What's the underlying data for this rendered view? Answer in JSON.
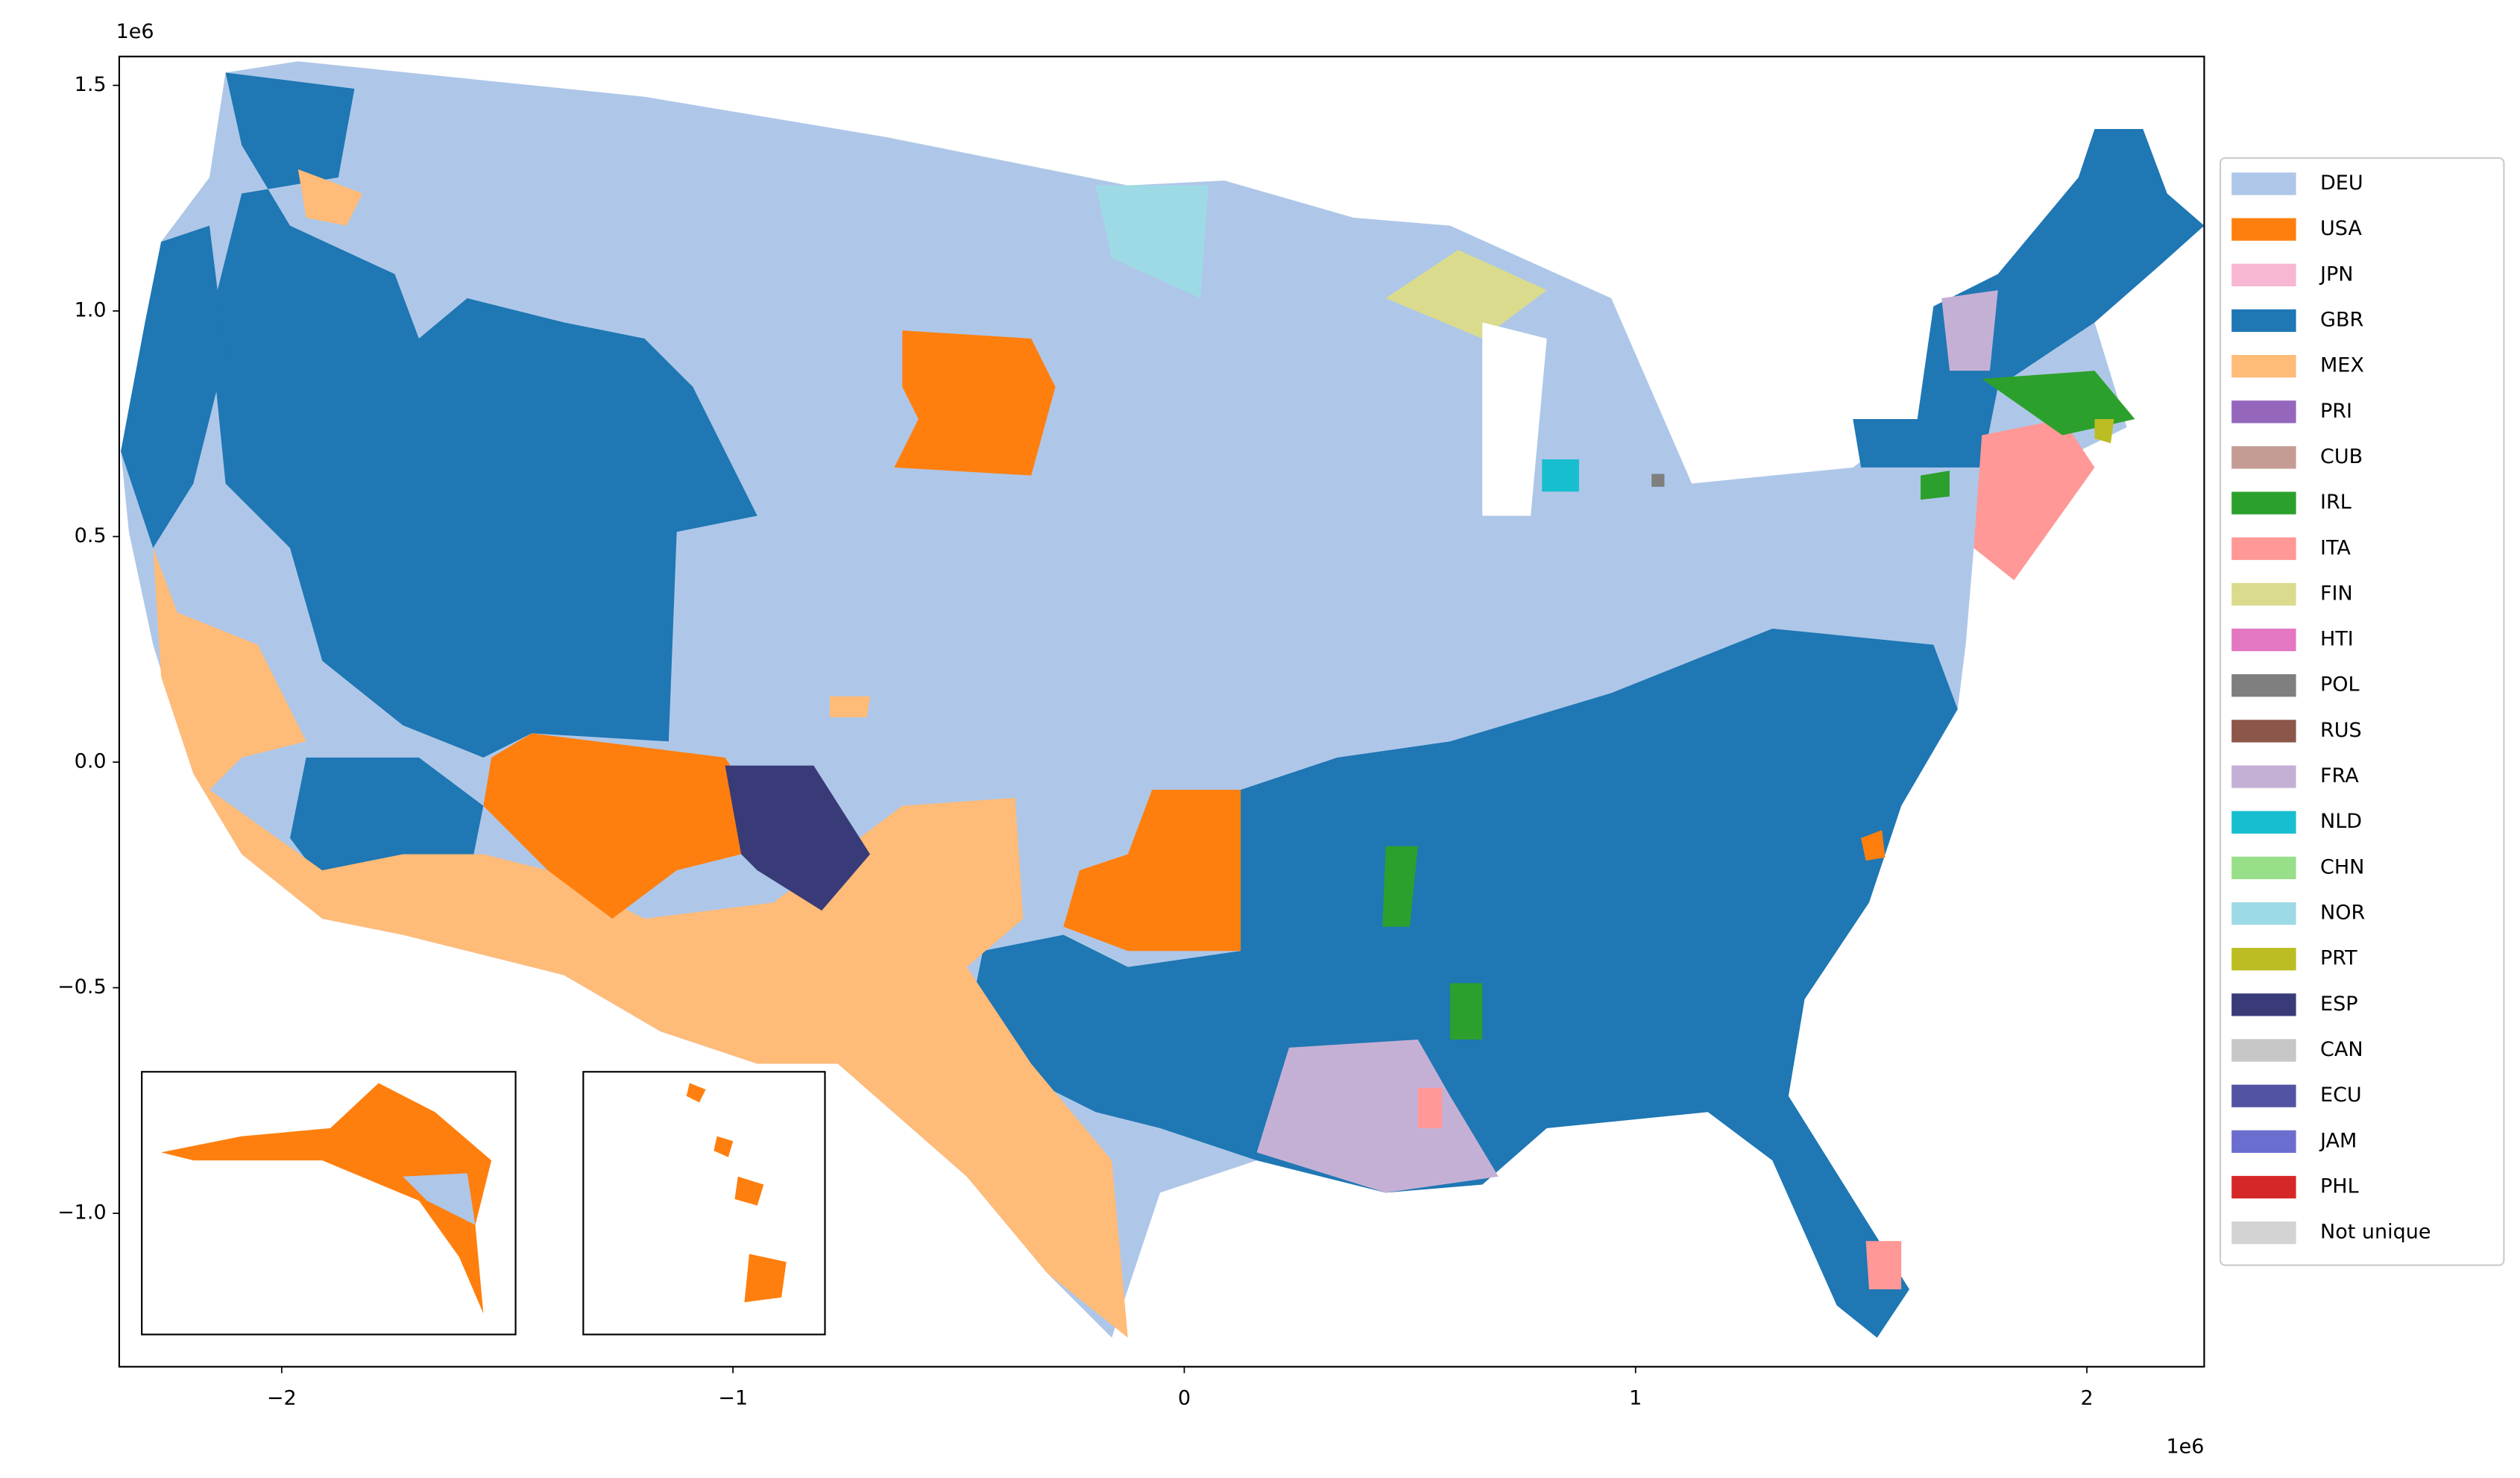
{
  "chart_data": {
    "type": "map",
    "xlim": [
      -2.36,
      2.26
    ],
    "ylim": [
      -1.34,
      1.564
    ],
    "xticks": [
      {
        "value": -2,
        "label": "−2"
      },
      {
        "value": -1,
        "label": "−1"
      },
      0,
      1,
      2
    ],
    "yticks": [
      {
        "value": -1.0,
        "label": "−1.0"
      },
      {
        "value": -0.5,
        "label": "−0.5"
      },
      {
        "value": 0.0,
        "label": "0.0"
      },
      0.5,
      {
        "value": 1.0,
        "label": "1.0"
      },
      1.5
    ],
    "x_offset_label": "1e6",
    "y_offset_label": "1e6",
    "legend_position": "right",
    "legend": [
      {
        "name": "DEU",
        "color": "#aec7e8"
      },
      {
        "name": "USA",
        "color": "#ff7f0e"
      },
      {
        "name": "JPN",
        "color": "#f7b6d2"
      },
      {
        "name": "GBR",
        "color": "#1f77b4"
      },
      {
        "name": "MEX",
        "color": "#ffbb78"
      },
      {
        "name": "PRI",
        "color": "#9467bd"
      },
      {
        "name": "CUB",
        "color": "#c49c94"
      },
      {
        "name": "IRL",
        "color": "#2ca02c"
      },
      {
        "name": "ITA",
        "color": "#ff9896"
      },
      {
        "name": "FIN",
        "color": "#dbdb8d"
      },
      {
        "name": "HTI",
        "color": "#e377c2"
      },
      {
        "name": "POL",
        "color": "#7f7f7f"
      },
      {
        "name": "RUS",
        "color": "#8c564b"
      },
      {
        "name": "FRA",
        "color": "#c5b0d5"
      },
      {
        "name": "NLD",
        "color": "#17becf"
      },
      {
        "name": "CHN",
        "color": "#98df8a"
      },
      {
        "name": "NOR",
        "color": "#9edae5"
      },
      {
        "name": "PRT",
        "color": "#bcbd22"
      },
      {
        "name": "ESP",
        "color": "#393b79"
      },
      {
        "name": "CAN",
        "color": "#c7c7c7"
      },
      {
        "name": "ECU",
        "color": "#5254a3"
      },
      {
        "name": "JAM",
        "color": "#6b6ecf"
      },
      {
        "name": "PHL",
        "color": "#d62728"
      },
      {
        "name": "Not unique",
        "color": "#d3d3d3"
      }
    ]
  }
}
